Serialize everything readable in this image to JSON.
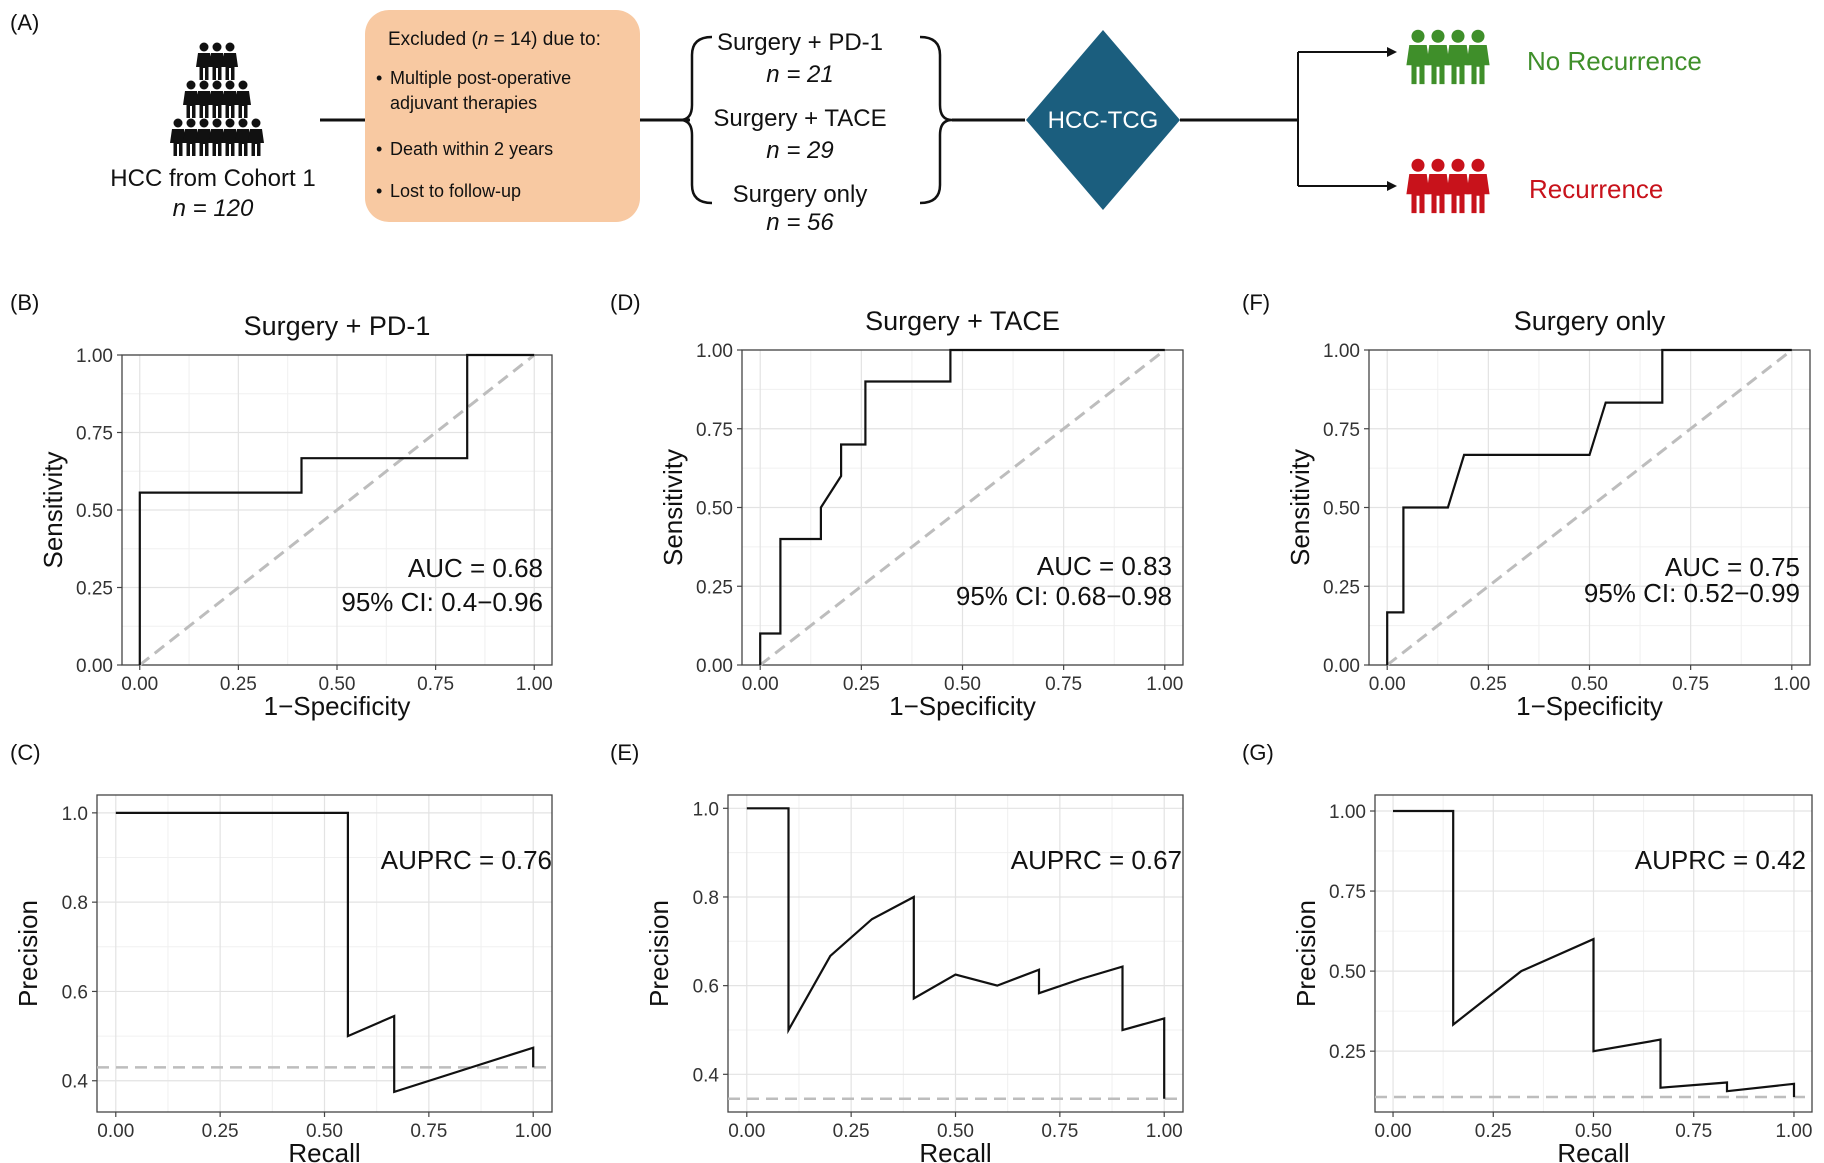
{
  "panel_labels": {
    "A": "(A)",
    "B": "(B)",
    "C": "(C)",
    "D": "(D)",
    "E": "(E)",
    "F": "(F)",
    "G": "(G)"
  },
  "flow": {
    "cohort": {
      "label": "HCC from Cohort 1",
      "n": "n = 120"
    },
    "excluded": {
      "title_pre": "Excluded (",
      "title_n": "n",
      "title_post": " = 14) due to:",
      "bullets": [
        "Multiple post-operative",
        "adjuvant therapies",
        "Death within 2 years",
        "Lost to follow-up"
      ]
    },
    "groups": [
      {
        "label": "Surgery + PD-1",
        "n": "n = 21"
      },
      {
        "label": "Surgery + TACE",
        "n": "n = 29"
      },
      {
        "label": "Surgery only",
        "n": "n = 56"
      }
    ],
    "model": "HCC-TCG",
    "outcomes": {
      "no_recurrence": "No Recurrence",
      "recurrence": "Recurrence"
    },
    "colors": {
      "excluded_box": "#f8c9a2",
      "model_diamond": "#1b5e7e",
      "no_recurrence": "#3f8f2a",
      "recurrence": "#c8121b"
    }
  },
  "chart_data": [
    {
      "type": "line",
      "panel": "B",
      "title": "Surgery + PD-1",
      "xlabel": "1−Specificity",
      "ylabel": "Sensitivity",
      "xlim": [
        0,
        1
      ],
      "ylim": [
        0,
        1
      ],
      "xticks": [
        "0.00",
        "0.25",
        "0.50",
        "0.75",
        "1.00"
      ],
      "yticks": [
        "0.00",
        "0.25",
        "0.50",
        "0.75",
        "1.00"
      ],
      "grid": true,
      "series": [
        {
          "x": [
            0,
            0,
            0.41,
            0.41,
            0.83,
            0.83,
            1
          ],
          "y": [
            0,
            0.556,
            0.556,
            0.667,
            0.667,
            1,
            1
          ]
        }
      ],
      "reference": {
        "x": [
          0,
          1
        ],
        "y": [
          0,
          1
        ]
      },
      "annotations": [
        "AUC = 0.68",
        "95% CI: 0.4−0.96"
      ]
    },
    {
      "type": "line",
      "panel": "C",
      "title": "",
      "xlabel": "Recall",
      "ylabel": "Precision",
      "xlim": [
        0,
        1
      ],
      "ylim": [
        0.33,
        1.04
      ],
      "xticks": [
        "0.00",
        "0.25",
        "0.50",
        "0.75",
        "1.00"
      ],
      "yticks": [
        "0.4",
        "0.6",
        "0.8",
        "1.0"
      ],
      "grid": true,
      "series": [
        {
          "x": [
            0,
            0.556,
            0.556,
            0.667,
            0.667,
            1,
            1
          ],
          "y": [
            1,
            1,
            0.5,
            0.545,
            0.375,
            0.474,
            0.43
          ]
        }
      ],
      "baseline": 0.43,
      "annotations": [
        "AUPRC = 0.76"
      ]
    },
    {
      "type": "line",
      "panel": "D",
      "title": "Surgery + TACE",
      "xlabel": "1−Specificity",
      "ylabel": "Sensitivity",
      "xlim": [
        0,
        1
      ],
      "ylim": [
        0,
        1
      ],
      "xticks": [
        "0.00",
        "0.25",
        "0.50",
        "0.75",
        "1.00"
      ],
      "yticks": [
        "0.00",
        "0.25",
        "0.50",
        "0.75",
        "1.00"
      ],
      "grid": true,
      "series": [
        {
          "x": [
            0,
            0,
            0.05,
            0.05,
            0.15,
            0.15,
            0.2,
            0.2,
            0.26,
            0.26,
            0.47,
            0.47,
            1
          ],
          "y": [
            0,
            0.1,
            0.1,
            0.4,
            0.4,
            0.5,
            0.6,
            0.7,
            0.7,
            0.9,
            0.9,
            1,
            1
          ]
        }
      ],
      "reference": {
        "x": [
          0,
          1
        ],
        "y": [
          0,
          1
        ]
      },
      "annotations": [
        "AUC = 0.83",
        "95% CI: 0.68−0.98"
      ]
    },
    {
      "type": "line",
      "panel": "E",
      "title": "",
      "xlabel": "Recall",
      "ylabel": "Precision",
      "xlim": [
        0,
        1
      ],
      "ylim": [
        0.315,
        1.03
      ],
      "xticks": [
        "0.00",
        "0.25",
        "0.50",
        "0.75",
        "1.00"
      ],
      "yticks": [
        "0.4",
        "0.6",
        "0.8",
        "1.0"
      ],
      "grid": true,
      "series": [
        {
          "x": [
            0,
            0.1,
            0.1,
            0.2,
            0.3,
            0.4,
            0.4,
            0.5,
            0.6,
            0.7,
            0.7,
            0.8,
            0.9,
            0.9,
            1,
            1
          ],
          "y": [
            1,
            1,
            0.5,
            0.667,
            0.75,
            0.8,
            0.571,
            0.625,
            0.6,
            0.636,
            0.583,
            0.615,
            0.643,
            0.5,
            0.526,
            0.345
          ]
        }
      ],
      "baseline": 0.345,
      "annotations": [
        "AUPRC = 0.67"
      ]
    },
    {
      "type": "line",
      "panel": "F",
      "title": "Surgery only",
      "xlabel": "1−Specificity",
      "ylabel": "Sensitivity",
      "xlim": [
        0,
        1
      ],
      "ylim": [
        0,
        1
      ],
      "xticks": [
        "0.00",
        "0.25",
        "0.50",
        "0.75",
        "1.00"
      ],
      "yticks": [
        "0.00",
        "0.25",
        "0.50",
        "0.75",
        "1.00"
      ],
      "grid": true,
      "series": [
        {
          "x": [
            0,
            0,
            0.04,
            0.04,
            0.15,
            0.19,
            0.19,
            0.5,
            0.54,
            0.68,
            0.68,
            1
          ],
          "y": [
            0,
            0.167,
            0.167,
            0.5,
            0.5,
            0.667,
            0.667,
            0.667,
            0.833,
            0.833,
            1,
            1
          ]
        }
      ],
      "reference": {
        "x": [
          0,
          1
        ],
        "y": [
          0,
          1
        ]
      },
      "annotations": [
        "AUC = 0.75",
        "95% CI: 0.52−0.99"
      ]
    },
    {
      "type": "line",
      "panel": "G",
      "title": "",
      "xlabel": "Recall",
      "ylabel": "Precision",
      "xlim": [
        0,
        1
      ],
      "ylim": [
        0.06,
        1.05
      ],
      "xticks": [
        "0.00",
        "0.25",
        "0.50",
        "0.75",
        "1.00"
      ],
      "yticks": [
        "0.25",
        "0.50",
        "0.75",
        "1.00"
      ],
      "grid": true,
      "series": [
        {
          "x": [
            0,
            0.15,
            0.15,
            0.32,
            0.5,
            0.5,
            0.667,
            0.667,
            0.833,
            0.833,
            1,
            1
          ],
          "y": [
            1,
            1,
            0.333,
            0.5,
            0.6,
            0.25,
            0.286,
            0.136,
            0.152,
            0.125,
            0.148,
            0.107
          ]
        }
      ],
      "baseline": 0.107,
      "annotations": [
        "AUPRC = 0.42"
      ]
    }
  ]
}
